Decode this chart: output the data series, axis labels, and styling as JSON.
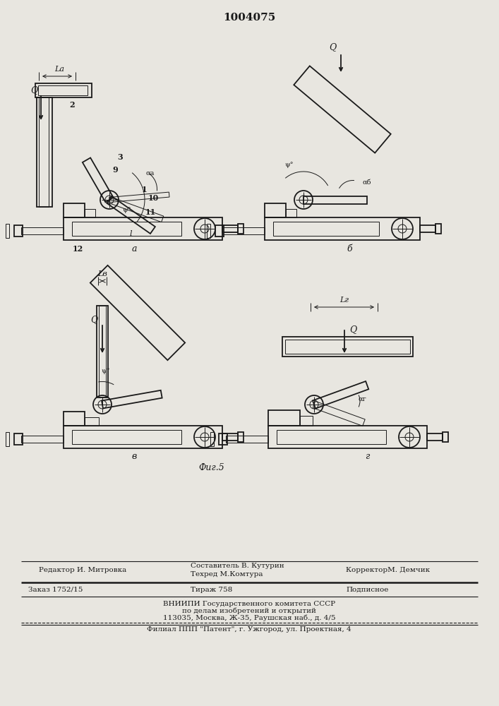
{
  "title": "1004075",
  "bg_color": "#e8e6e0",
  "line_color": "#1a1a1a",
  "lw": 1.3,
  "tlw": 0.7,
  "footer_lines": [
    [
      "left",
      55,
      188,
      "Редактор И. Митровка"
    ],
    [
      "center",
      270,
      193,
      "Составитель В. Кутурин"
    ],
    [
      "center",
      270,
      182,
      "Техред М.Комтура"
    ],
    [
      "right",
      490,
      188,
      "КорректорМ. Демчик"
    ],
    [
      "left",
      30,
      162,
      "Заказ 1752/15"
    ],
    [
      "center",
      270,
      162,
      "Тираж 758"
    ],
    [
      "right",
      490,
      162,
      "Подписное"
    ],
    [
      "center",
      353,
      143,
      "ВНИИПИ Государственного комитета СССР"
    ],
    [
      "center",
      353,
      133,
      "по делам изобретений и открытий"
    ],
    [
      "center",
      353,
      123,
      "113035, Москва, Ж-35, Раушская наб., д. 4/5"
    ],
    [
      "center",
      353,
      105,
      "Филиал ППП \"Патент\", г. Ужгород, ул. Проектная, 4"
    ]
  ]
}
